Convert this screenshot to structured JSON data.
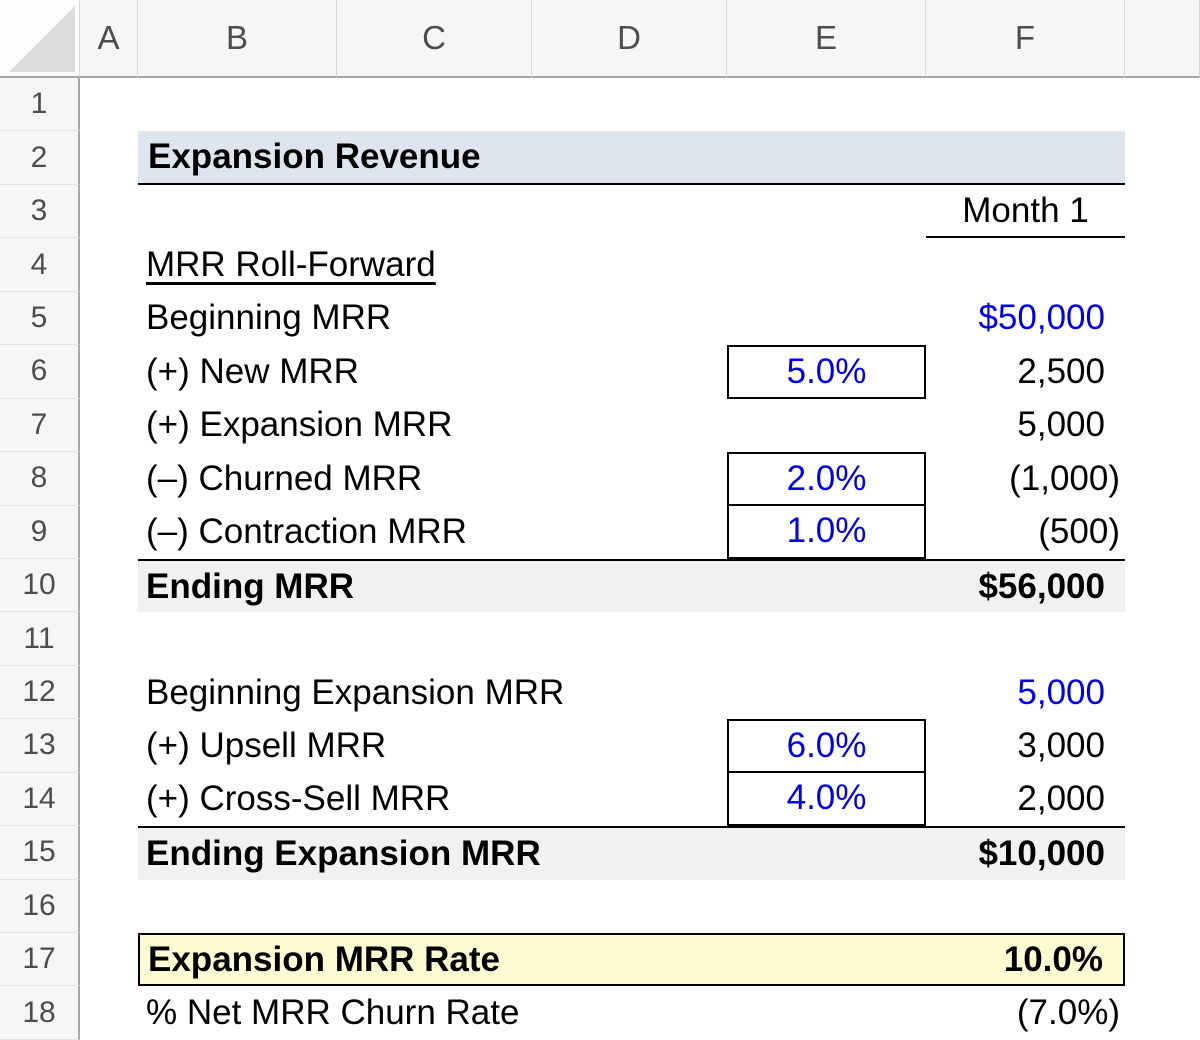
{
  "sheet": {
    "columns": [
      "A",
      "B",
      "C",
      "D",
      "E",
      "F"
    ],
    "row_numbers": [
      "1",
      "2",
      "3",
      "4",
      "5",
      "6",
      "7",
      "8",
      "9",
      "10",
      "11",
      "12",
      "13",
      "14",
      "15",
      "16",
      "17",
      "18"
    ],
    "title": "Expansion Revenue",
    "month_header": "Month 1",
    "section1": {
      "heading": "MRR Roll-Forward",
      "line_items": [
        {
          "label": "Beginning MRR",
          "value": "$50,000"
        },
        {
          "label": "(+) New MRR",
          "assumption": "5.0%",
          "value": "2,500"
        },
        {
          "label": "(+) Expansion MRR",
          "value": "5,000"
        },
        {
          "label": "(–) Churned MRR",
          "assumption": "2.0%",
          "value": "(1,000)"
        },
        {
          "label": "(–) Contraction MRR",
          "assumption": "1.0%",
          "value": "(500)"
        }
      ],
      "total": {
        "label": "Ending MRR",
        "value": "$56,000"
      }
    },
    "section2": {
      "line_items": [
        {
          "label": "Beginning Expansion MRR",
          "value": "5,000"
        },
        {
          "label": "(+) Upsell MRR",
          "assumption": "6.0%",
          "value": "3,000"
        },
        {
          "label": "(+) Cross-Sell MRR",
          "assumption": "4.0%",
          "value": "2,000"
        }
      ],
      "total": {
        "label": "Ending Expansion MRR",
        "value": "$10,000"
      }
    },
    "metrics": [
      {
        "label": "Expansion MRR Rate",
        "value": "10.0%"
      },
      {
        "label": "% Net MRR Churn Rate",
        "value": "(7.0%)"
      }
    ],
    "colors": {
      "title_banner_bg": "#dfe5ef",
      "total_row_bg": "#f1f1f1",
      "highlight_bg": "#fdfbd2",
      "input_blue": "#0000ee",
      "header_bg": "#f6f6f6",
      "header_text": "#4d4d4d"
    }
  }
}
